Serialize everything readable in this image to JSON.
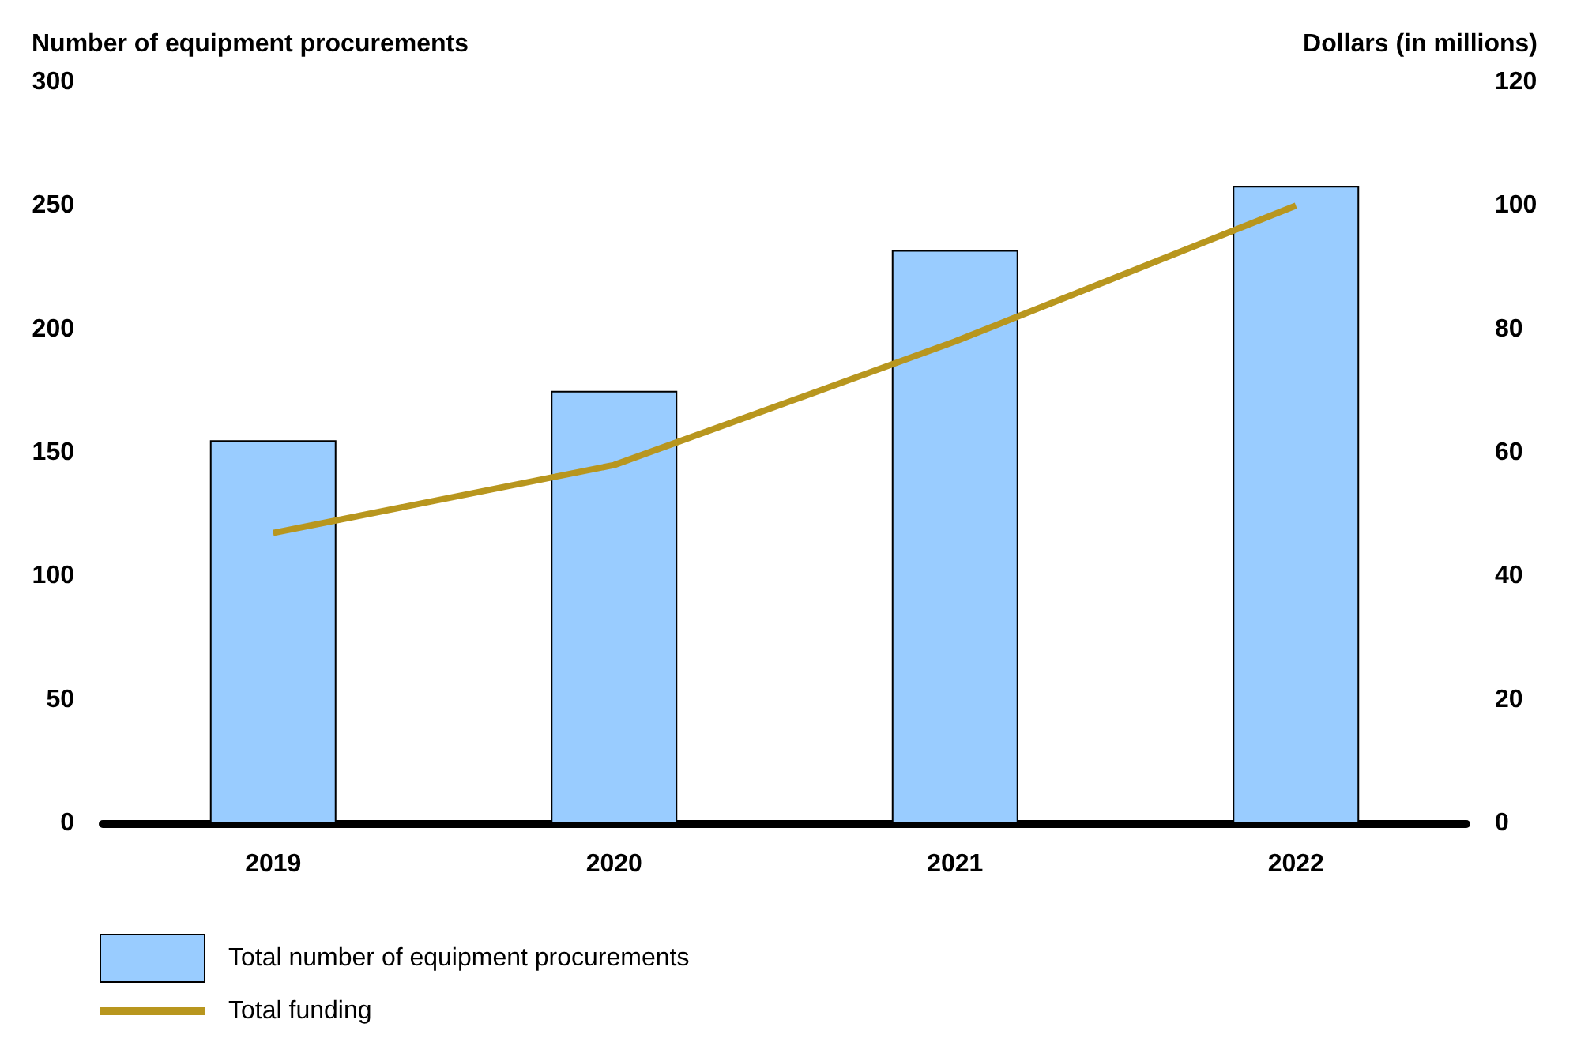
{
  "chart_data": {
    "type": "bar",
    "ylabel": "Number of equipment procurements",
    "y2label": "Dollars (in millions)",
    "categories": [
      "2019",
      "2020",
      "2021",
      "2022"
    ],
    "series": [
      {
        "name": "Total number of equipment procurements",
        "color": "#99ccff",
        "values": [
          155,
          175,
          232,
          258
        ]
      },
      {
        "name": "Total funding",
        "type": "line",
        "axis": "y2",
        "color": "#b8961e",
        "values": [
          47,
          58,
          78,
          100
        ]
      }
    ],
    "ylim": [
      0,
      300
    ],
    "yticks": [
      0,
      50,
      100,
      150,
      200,
      250,
      300
    ],
    "y2lim": [
      0,
      120
    ],
    "y2ticks": [
      0,
      20,
      40,
      60,
      80,
      100,
      120
    ],
    "grid": false,
    "legend": "bottom left",
    "marker": "none"
  }
}
